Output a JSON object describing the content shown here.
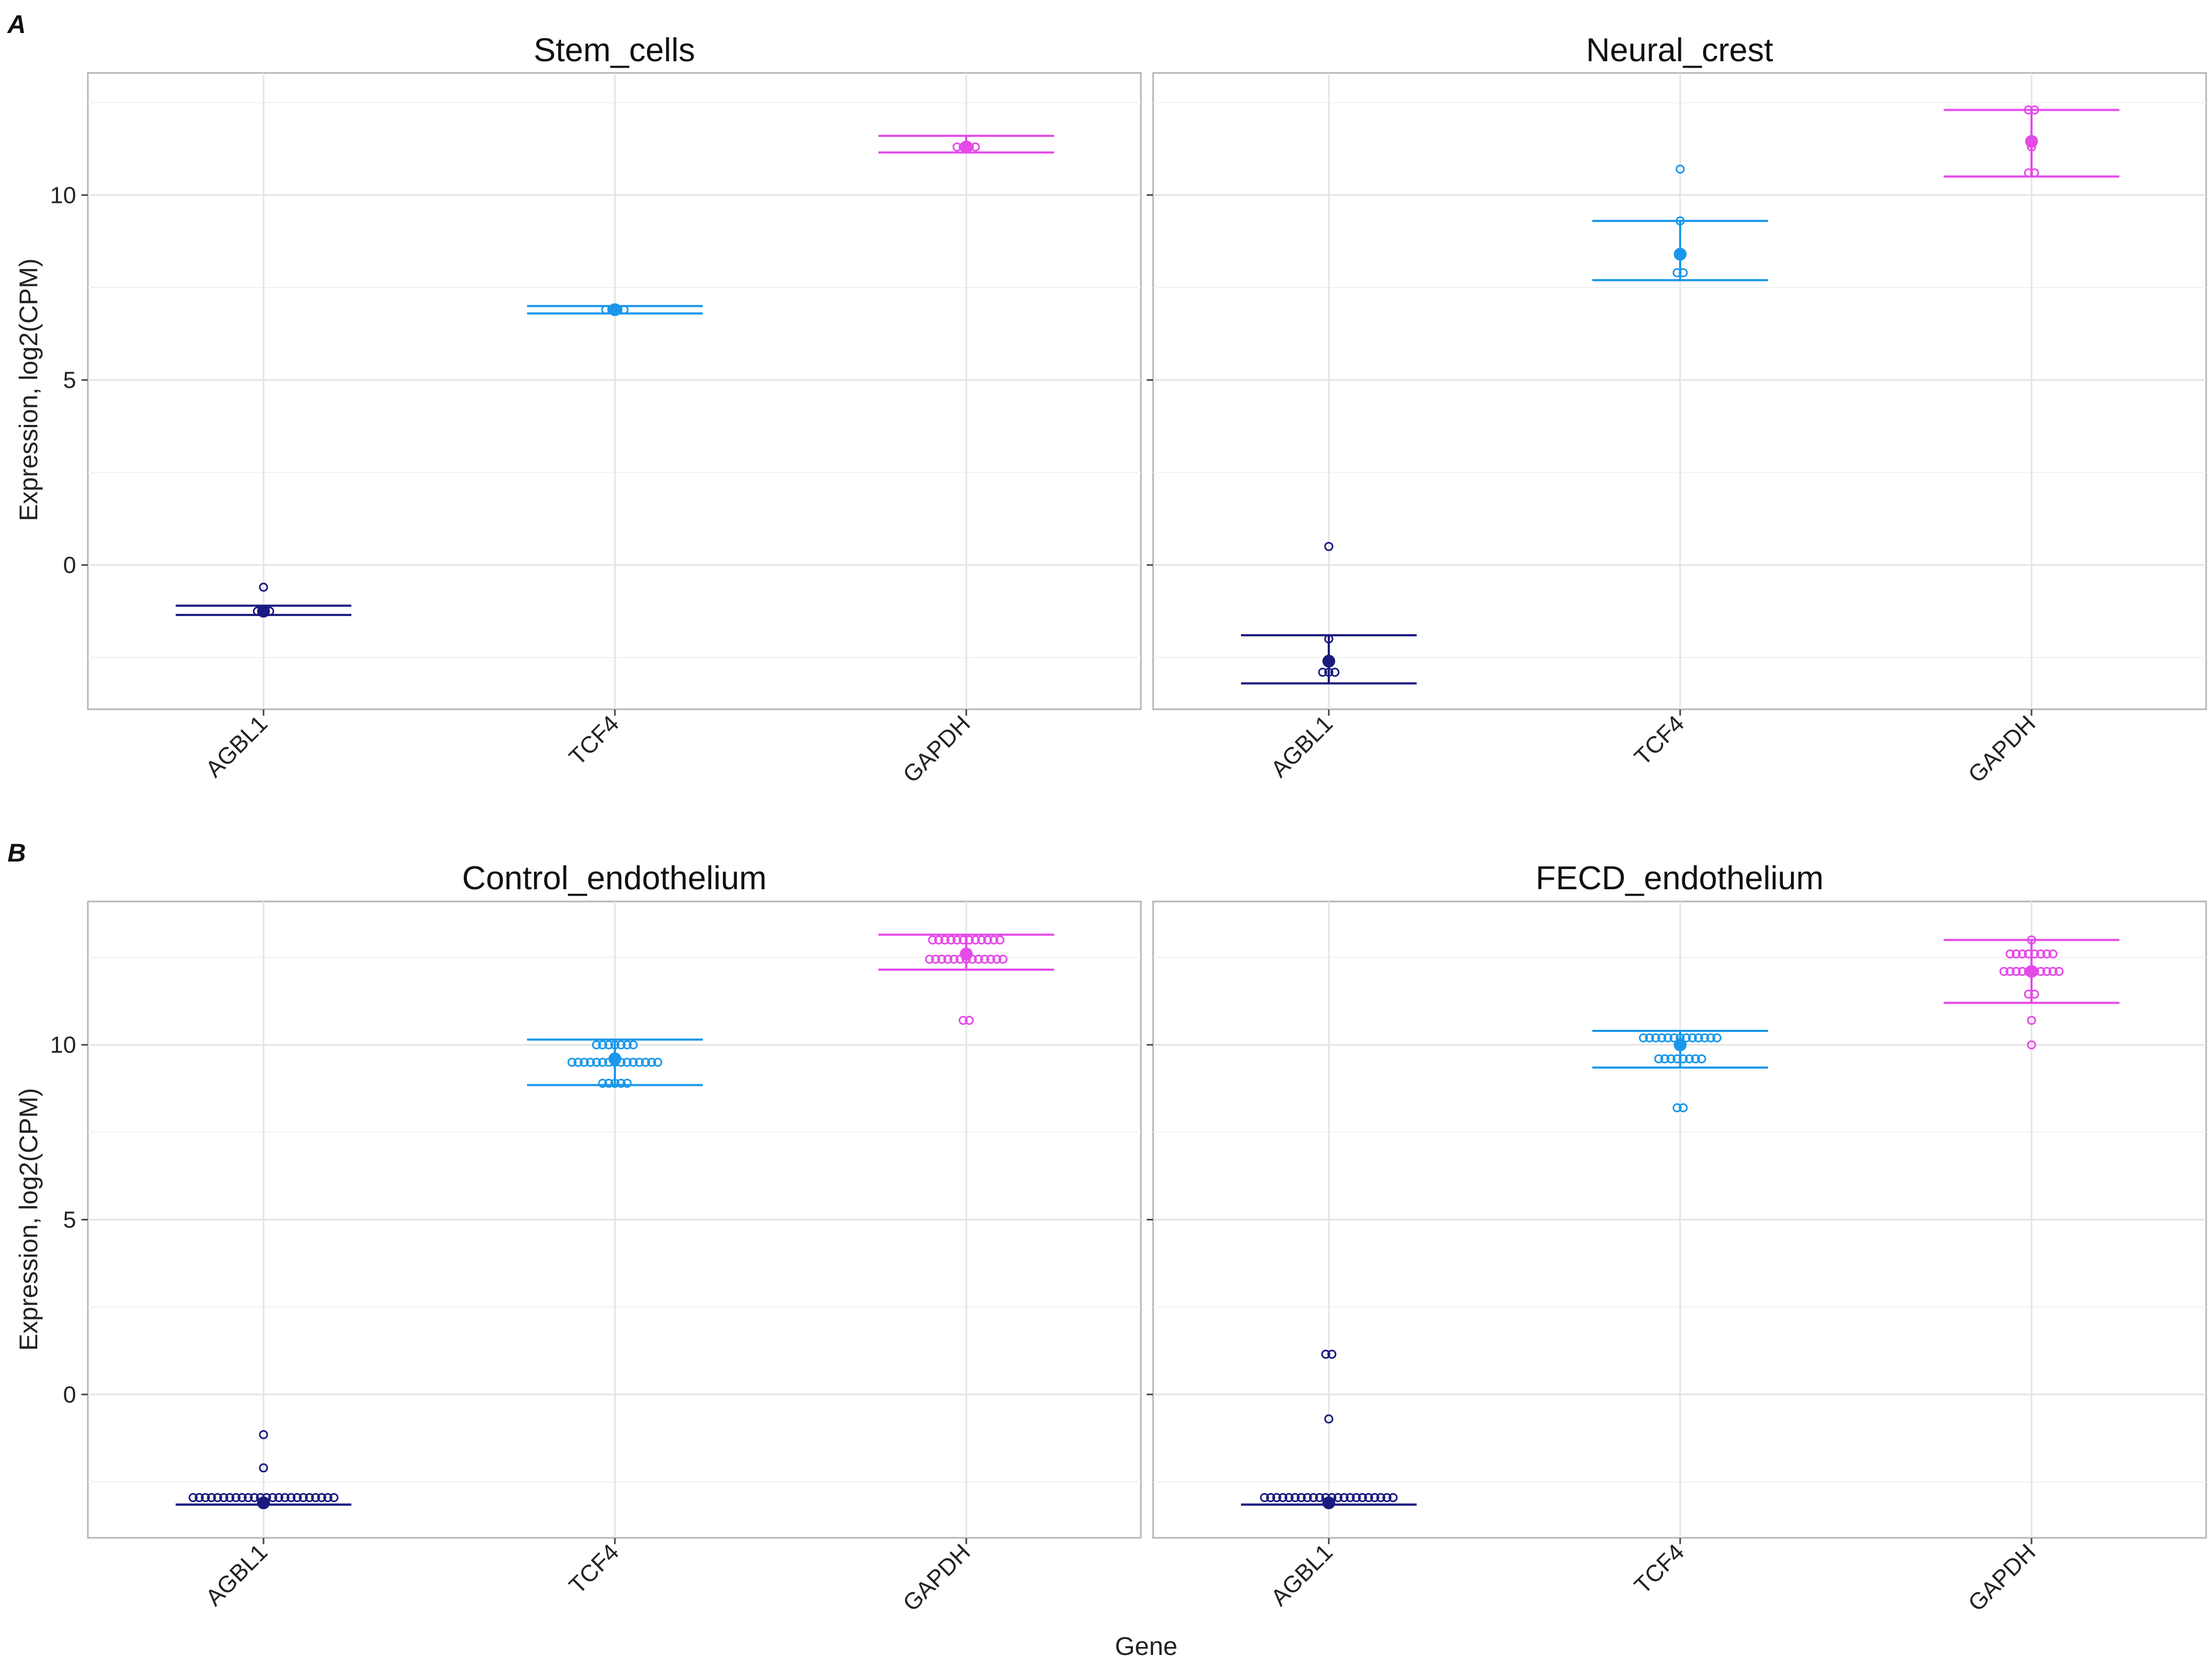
{
  "figure": {
    "panel_tags": [
      "A",
      "B"
    ],
    "ylabel": "Expression, log2(CPM)",
    "xlabel": "Gene",
    "genes": [
      "AGBL1",
      "TCF4",
      "GAPDH"
    ],
    "gene_colors": {
      "AGBL1": "#1a1a80",
      "TCF4": "#1a97ea",
      "GAPDH": "#e54ae9"
    },
    "grid": true
  },
  "chart_data": [
    {
      "type": "scatter",
      "panel": "A",
      "title": "Stem_cells",
      "xlabel": "",
      "ylabel": "Expression, log2(CPM)",
      "categories": [
        "AGBL1",
        "TCF4",
        "GAPDH"
      ],
      "ylim": [
        -3.9,
        13.3
      ],
      "yticks": [
        0,
        5,
        10
      ],
      "series": [
        {
          "gene": "AGBL1",
          "mean": -1.25,
          "err_low": -1.35,
          "err_high": -1.1,
          "points": [
            -0.6,
            -1.25,
            -1.25,
            -1.25
          ]
        },
        {
          "gene": "TCF4",
          "mean": 6.9,
          "err_low": 6.8,
          "err_high": 7.0,
          "points": [
            6.9,
            6.9,
            6.9,
            6.9
          ]
        },
        {
          "gene": "GAPDH",
          "mean": 11.3,
          "err_low": 11.15,
          "err_high": 11.6,
          "points": [
            11.3,
            11.3,
            11.3,
            11.3
          ]
        }
      ]
    },
    {
      "type": "scatter",
      "panel": "A",
      "title": "Neural_crest",
      "xlabel": "",
      "ylabel": "Expression, log2(CPM)",
      "categories": [
        "AGBL1",
        "TCF4",
        "GAPDH"
      ],
      "ylim": [
        -3.9,
        13.3
      ],
      "yticks": [
        0,
        5,
        10
      ],
      "series": [
        {
          "gene": "AGBL1",
          "mean": -2.6,
          "err_low": -3.2,
          "err_high": -1.9,
          "points": [
            0.5,
            -2.0,
            -2.9,
            -2.9,
            -2.9
          ]
        },
        {
          "gene": "TCF4",
          "mean": 8.4,
          "err_low": 7.7,
          "err_high": 9.3,
          "points": [
            10.7,
            9.3,
            8.4,
            7.9,
            7.9
          ]
        },
        {
          "gene": "GAPDH",
          "mean": 11.45,
          "err_low": 10.5,
          "err_high": 12.3,
          "points": [
            12.3,
            12.3,
            11.3,
            10.6,
            10.6
          ]
        }
      ]
    },
    {
      "type": "scatter",
      "panel": "B",
      "title": "Control_endothelium",
      "xlabel": "Gene",
      "ylabel": "Expression, log2(CPM)",
      "categories": [
        "AGBL1",
        "TCF4",
        "GAPDH"
      ],
      "ylim": [
        -4.1,
        14.1
      ],
      "yticks": [
        0,
        5,
        10
      ],
      "series": [
        {
          "gene": "AGBL1",
          "mean": -3.1,
          "err_low": -3.15,
          "err_high": -3.15,
          "groups": [
            {
              "value": -1.15,
              "count": 1
            },
            {
              "value": -2.1,
              "count": 1
            },
            {
              "value": -2.95,
              "count": 24
            }
          ]
        },
        {
          "gene": "TCF4",
          "mean": 9.6,
          "err_low": 8.85,
          "err_high": 10.15,
          "groups": [
            {
              "value": 10.0,
              "count": 7
            },
            {
              "value": 9.5,
              "count": 15
            },
            {
              "value": 8.9,
              "count": 5
            }
          ]
        },
        {
          "gene": "GAPDH",
          "mean": 12.6,
          "err_low": 12.15,
          "err_high": 13.15,
          "groups": [
            {
              "value": 13.0,
              "count": 12
            },
            {
              "value": 12.45,
              "count": 13
            },
            {
              "value": 10.7,
              "count": 2
            }
          ]
        }
      ]
    },
    {
      "type": "scatter",
      "panel": "B",
      "title": "FECD_endothelium",
      "xlabel": "Gene",
      "ylabel": "",
      "categories": [
        "AGBL1",
        "TCF4",
        "GAPDH"
      ],
      "ylim": [
        -4.1,
        14.1
      ],
      "yticks": [
        0,
        5,
        10
      ],
      "series": [
        {
          "gene": "AGBL1",
          "mean": -3.1,
          "err_low": -3.15,
          "err_high": -3.15,
          "groups": [
            {
              "value": 1.15,
              "count": 2
            },
            {
              "value": -0.7,
              "count": 1
            },
            {
              "value": -2.95,
              "count": 22
            }
          ]
        },
        {
          "gene": "TCF4",
          "mean": 10.0,
          "err_low": 9.35,
          "err_high": 10.4,
          "groups": [
            {
              "value": 10.2,
              "count": 13
            },
            {
              "value": 9.6,
              "count": 8
            },
            {
              "value": 8.2,
              "count": 2
            }
          ]
        },
        {
          "gene": "GAPDH",
          "mean": 12.1,
          "err_low": 11.2,
          "err_high": 13.0,
          "groups": [
            {
              "value": 13.0,
              "count": 1
            },
            {
              "value": 12.6,
              "count": 8
            },
            {
              "value": 12.1,
              "count": 10
            },
            {
              "value": 11.45,
              "count": 2
            },
            {
              "value": 10.7,
              "count": 1
            },
            {
              "value": 10.0,
              "count": 1
            }
          ]
        }
      ]
    }
  ]
}
